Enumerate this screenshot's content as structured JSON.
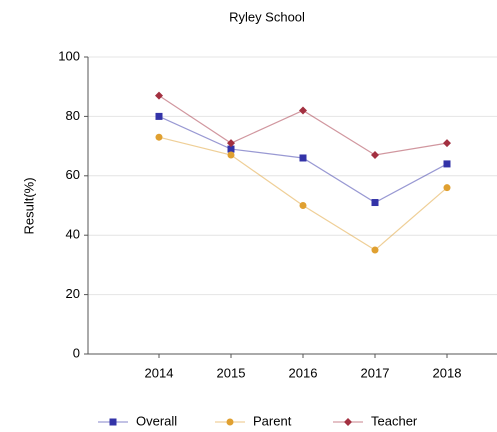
{
  "chart_data": {
    "type": "line",
    "title": "Ryley School",
    "y_label": "Result(%)",
    "categories": [
      "2014",
      "2015",
      "2016",
      "2017",
      "2018"
    ],
    "series": [
      {
        "name": "Overall",
        "color": "#3333a8",
        "marker": "square",
        "values": [
          80,
          69,
          66,
          51,
          64
        ]
      },
      {
        "name": "Parent",
        "color": "#e0a030",
        "marker": "circle",
        "values": [
          73,
          67,
          50,
          35,
          56
        ]
      },
      {
        "name": "Teacher",
        "color": "#a33040",
        "marker": "diamond",
        "values": [
          87,
          71,
          82,
          67,
          71
        ]
      }
    ],
    "ylim": [
      0,
      100
    ],
    "yticks": [
      0,
      20,
      40,
      60,
      80,
      100
    ],
    "grid": true,
    "legend": "bottom"
  }
}
